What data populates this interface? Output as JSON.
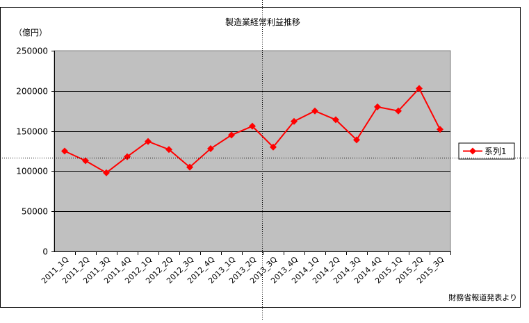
{
  "chart_data": {
    "type": "line",
    "title": "製造業経常利益推移",
    "ylabel": "（億円）",
    "xlabel": "",
    "ylim": [
      0,
      250000
    ],
    "yticks": [
      0,
      50000,
      100000,
      150000,
      200000,
      250000
    ],
    "ytick_labels": [
      "0",
      "50000",
      "100000",
      "150000",
      "200000",
      "250000"
    ],
    "grid": true,
    "legend_position": "right",
    "categories": [
      "2011_1Q",
      "2011_2Q",
      "2011_3Q",
      "2011_4Q",
      "2012_1Q",
      "2012_2Q",
      "2012_3Q",
      "2012_4Q",
      "2013_1Q",
      "2013_2Q",
      "2013_3Q",
      "2013_4Q",
      "2014_1Q",
      "2014_2Q",
      "2014_3Q",
      "2014_4Q",
      "2015_1Q",
      "2015_2Q",
      "2015_3Q"
    ],
    "series": [
      {
        "name": "系列1",
        "color": "#ff0000",
        "values": [
          125000,
          113000,
          98000,
          118000,
          137000,
          127000,
          105000,
          128000,
          145000,
          156000,
          130000,
          162000,
          175000,
          164000,
          139000,
          180000,
          175000,
          203000,
          152000
        ]
      }
    ],
    "plot_background": "#c0c0c0",
    "source_note": "財務省報道発表より"
  }
}
